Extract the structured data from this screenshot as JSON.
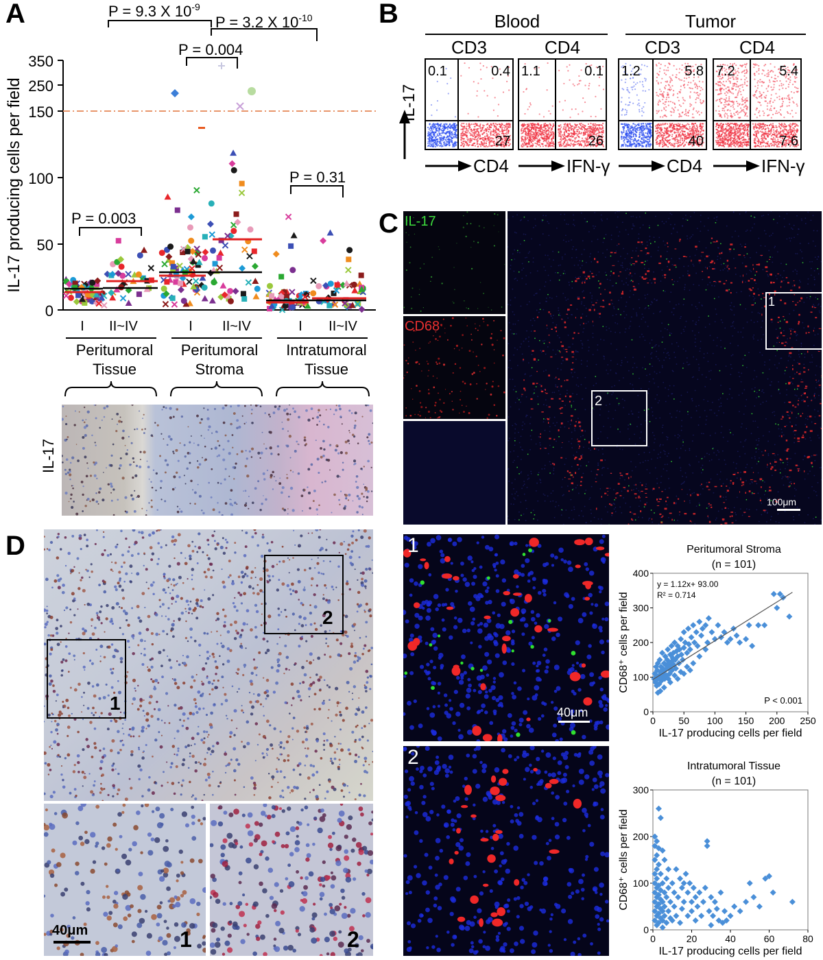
{
  "panels": {
    "A": "A",
    "B": "B",
    "C": "C",
    "D": "D"
  },
  "panelA": {
    "ylabel": "IL-17 producing cells per field",
    "yticks": [
      "0",
      "50",
      "100",
      "150",
      "250",
      "350"
    ],
    "xgroups": [
      {
        "stages": [
          "I",
          "II~IV"
        ],
        "name_line1": "Peritumoral",
        "name_line2": "Tissue"
      },
      {
        "stages": [
          "I",
          "II~IV"
        ],
        "name_line1": "Peritumoral",
        "name_line2": "Stroma"
      },
      {
        "stages": [
          "I",
          "II~IV"
        ],
        "name_line1": "Intratumoral",
        "name_line2": "Tissue"
      }
    ],
    "pvalues": {
      "p1": "P = 9.3 X 10",
      "p1_exp": "-9",
      "p2": "P = 3.2 X 10",
      "p2_exp": "-10",
      "p3": "P = 0.004",
      "p4": "P = 0.003",
      "p5": "P = 0.31"
    },
    "ihc_label": "IL-17",
    "colors": {
      "threshold": "#e8956a",
      "median_black": "#000000",
      "median_red": "#e02020"
    }
  },
  "panelB": {
    "group_blood": "Blood",
    "group_tumor": "Tumor",
    "plots": [
      {
        "title": "CD3",
        "ul": "0.1",
        "ur": "0.4",
        "lr": "27",
        "xlabel": "CD4"
      },
      {
        "title": "CD4",
        "ul": "1.1",
        "ur": "0.1",
        "lr": "26",
        "xlabel": "IFN-γ"
      },
      {
        "title": "CD3",
        "ul": "1.2",
        "ur": "5.8",
        "lr": "40",
        "xlabel": "CD4"
      },
      {
        "title": "CD4",
        "ul": "7.2",
        "ur": "5.4",
        "lr": "7.6",
        "xlabel": "IFN-γ"
      }
    ],
    "ylabel": "IL-17"
  },
  "panelC": {
    "label_il17": "IL-17",
    "label_cd68": "CD68",
    "box1": "1",
    "box2": "2",
    "scalebar": "100μm",
    "zoom1_label": "1",
    "zoom2_label": "2",
    "zoom_scalebar": "40μm"
  },
  "panelD": {
    "box1": "1",
    "box2": "2",
    "sub1": "1",
    "sub2": "2",
    "scalebar": "40μm"
  },
  "chart_data": [
    {
      "type": "scatter",
      "title": "Peritumoral Stroma",
      "subtitle": "(n = 101)",
      "xlabel": "IL-17 producing cells per field",
      "ylabel": "CD68⁺ cells per field",
      "xlim": [
        0,
        250
      ],
      "ylim": [
        0,
        400
      ],
      "xticks": [
        0,
        50,
        100,
        150,
        200,
        250
      ],
      "yticks": [
        0,
        100,
        200,
        300,
        400
      ],
      "equation": "y = 1.12x+ 93.00",
      "r2": "R² = 0.714",
      "pvalue": "P < 0.001",
      "fit": {
        "slope": 1.12,
        "intercept": 93.0
      },
      "color": "#4a8fd8",
      "points": [
        [
          2,
          95
        ],
        [
          3,
          110
        ],
        [
          4,
          85
        ],
        [
          5,
          130
        ],
        [
          5,
          100
        ],
        [
          6,
          75
        ],
        [
          7,
          120
        ],
        [
          8,
          95
        ],
        [
          8,
          140
        ],
        [
          10,
          105
        ],
        [
          10,
          80
        ],
        [
          11,
          150
        ],
        [
          12,
          115
        ],
        [
          13,
          130
        ],
        [
          14,
          90
        ],
        [
          15,
          100
        ],
        [
          15,
          170
        ],
        [
          16,
          125
        ],
        [
          17,
          110
        ],
        [
          18,
          140
        ],
        [
          19,
          95
        ],
        [
          20,
          160
        ],
        [
          20,
          120
        ],
        [
          21,
          135
        ],
        [
          22,
          105
        ],
        [
          23,
          150
        ],
        [
          24,
          180
        ],
        [
          25,
          125
        ],
        [
          26,
          140
        ],
        [
          27,
          110
        ],
        [
          28,
          165
        ],
        [
          29,
          130
        ],
        [
          30,
          190
        ],
        [
          30,
          145
        ],
        [
          31,
          120
        ],
        [
          32,
          155
        ],
        [
          33,
          170
        ],
        [
          34,
          135
        ],
        [
          35,
          200
        ],
        [
          36,
          150
        ],
        [
          37,
          125
        ],
        [
          38,
          175
        ],
        [
          40,
          160
        ],
        [
          40,
          190
        ],
        [
          42,
          140
        ],
        [
          43,
          180
        ],
        [
          45,
          210
        ],
        [
          46,
          165
        ],
        [
          48,
          150
        ],
        [
          50,
          230
        ],
        [
          50,
          185
        ],
        [
          52,
          200
        ],
        [
          55,
          170
        ],
        [
          57,
          240
        ],
        [
          58,
          195
        ],
        [
          60,
          180
        ],
        [
          62,
          215
        ],
        [
          65,
          250
        ],
        [
          67,
          200
        ],
        [
          70,
          230
        ],
        [
          72,
          190
        ],
        [
          75,
          260
        ],
        [
          78,
          220
        ],
        [
          80,
          240
        ],
        [
          85,
          250
        ],
        [
          88,
          200
        ],
        [
          90,
          270
        ],
        [
          95,
          230
        ],
        [
          100,
          210
        ],
        [
          105,
          250
        ],
        [
          110,
          215
        ],
        [
          115,
          230
        ],
        [
          120,
          200
        ],
        [
          125,
          210
        ],
        [
          130,
          240
        ],
        [
          135,
          220
        ],
        [
          140,
          200
        ],
        [
          150,
          210
        ],
        [
          155,
          250
        ],
        [
          160,
          190
        ],
        [
          170,
          250
        ],
        [
          180,
          250
        ],
        [
          195,
          340
        ],
        [
          200,
          300
        ],
        [
          205,
          340
        ],
        [
          210,
          330
        ],
        [
          220,
          275
        ],
        [
          18,
          70
        ],
        [
          12,
          60
        ],
        [
          8,
          55
        ],
        [
          25,
          95
        ],
        [
          35,
          105
        ],
        [
          45,
          115
        ],
        [
          55,
          130
        ],
        [
          65,
          140
        ],
        [
          28,
          85
        ],
        [
          40,
          95
        ],
        [
          50,
          110
        ],
        [
          60,
          120
        ],
        [
          75,
          160
        ],
        [
          85,
          180
        ]
      ]
    },
    {
      "type": "scatter",
      "title": "Intratumoral Tissue",
      "subtitle": "(n = 101)",
      "xlabel": "IL-17 producing cells per field",
      "ylabel": "CD68⁺ cells per field",
      "xlim": [
        0,
        80
      ],
      "ylim": [
        0,
        300
      ],
      "xticks": [
        0,
        20,
        40,
        60,
        80
      ],
      "yticks": [
        0,
        100,
        200,
        300
      ],
      "color": "#4a8fd8",
      "points": [
        [
          1,
          20
        ],
        [
          1,
          40
        ],
        [
          1,
          60
        ],
        [
          1,
          80
        ],
        [
          1,
          100
        ],
        [
          1,
          120
        ],
        [
          1,
          150
        ],
        [
          1,
          180
        ],
        [
          1,
          200
        ],
        [
          2,
          10
        ],
        [
          2,
          30
        ],
        [
          2,
          50
        ],
        [
          2,
          70
        ],
        [
          2,
          90
        ],
        [
          2,
          110
        ],
        [
          2,
          130
        ],
        [
          2,
          160
        ],
        [
          2,
          190
        ],
        [
          3,
          15
        ],
        [
          3,
          35
        ],
        [
          3,
          55
        ],
        [
          3,
          75
        ],
        [
          3,
          95
        ],
        [
          3,
          140
        ],
        [
          3,
          175
        ],
        [
          3,
          260
        ],
        [
          4,
          25
        ],
        [
          4,
          45
        ],
        [
          4,
          65
        ],
        [
          4,
          85
        ],
        [
          4,
          120
        ],
        [
          4,
          240
        ],
        [
          5,
          5
        ],
        [
          5,
          20
        ],
        [
          5,
          40
        ],
        [
          5,
          60
        ],
        [
          5,
          100
        ],
        [
          5,
          170
        ],
        [
          6,
          30
        ],
        [
          6,
          50
        ],
        [
          6,
          80
        ],
        [
          6,
          150
        ],
        [
          7,
          15
        ],
        [
          7,
          70
        ],
        [
          7,
          110
        ],
        [
          8,
          40
        ],
        [
          8,
          90
        ],
        [
          8,
          130
        ],
        [
          9,
          25
        ],
        [
          9,
          60
        ],
        [
          10,
          100
        ],
        [
          10,
          20
        ],
        [
          11,
          50
        ],
        [
          11,
          80
        ],
        [
          12,
          130
        ],
        [
          12,
          30
        ],
        [
          13,
          70
        ],
        [
          14,
          110
        ],
        [
          14,
          15
        ],
        [
          15,
          90
        ],
        [
          15,
          45
        ],
        [
          16,
          60
        ],
        [
          17,
          120
        ],
        [
          18,
          30
        ],
        [
          18,
          80
        ],
        [
          19,
          100
        ],
        [
          20,
          40
        ],
        [
          20,
          60
        ],
        [
          21,
          90
        ],
        [
          22,
          70
        ],
        [
          22,
          20
        ],
        [
          23,
          50
        ],
        [
          24,
          80
        ],
        [
          25,
          30
        ],
        [
          26,
          60
        ],
        [
          27,
          90
        ],
        [
          28,
          180
        ],
        [
          28,
          190
        ],
        [
          29,
          40
        ],
        [
          30,
          70
        ],
        [
          30,
          10
        ],
        [
          31,
          30
        ],
        [
          32,
          60
        ],
        [
          33,
          45
        ],
        [
          34,
          20
        ],
        [
          35,
          80
        ],
        [
          36,
          15
        ],
        [
          37,
          40
        ],
        [
          38,
          20
        ],
        [
          40,
          30
        ],
        [
          42,
          50
        ],
        [
          45,
          40
        ],
        [
          48,
          60
        ],
        [
          50,
          100
        ],
        [
          52,
          70
        ],
        [
          55,
          50
        ],
        [
          58,
          110
        ],
        [
          60,
          115
        ],
        [
          62,
          80
        ],
        [
          72,
          60
        ],
        [
          16,
          100
        ]
      ]
    }
  ]
}
